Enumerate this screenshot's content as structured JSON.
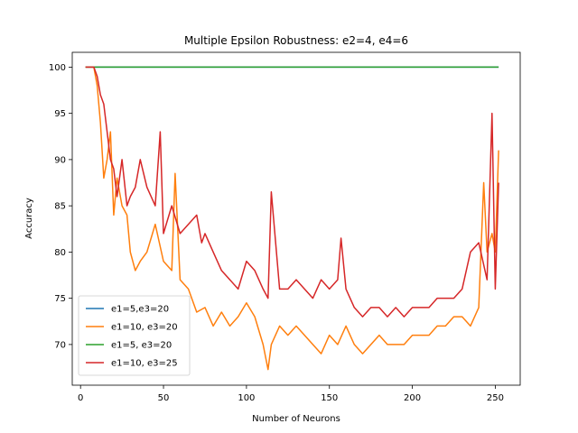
{
  "chart_data": {
    "type": "line",
    "title": "Multiple Epsilon Robustness: e2=4, e4=6",
    "xlabel": "Number of Neurons",
    "ylabel": "Accuracy",
    "xlim": [
      -5,
      265
    ],
    "ylim": [
      65.6,
      101.6
    ],
    "xticks": [
      0,
      50,
      100,
      150,
      200,
      250
    ],
    "yticks": [
      70,
      75,
      80,
      85,
      90,
      95,
      100
    ],
    "grid": false,
    "legend_position": "lower-left",
    "series": [
      {
        "name": "e1=5,e3=20",
        "color": "#1f77b4",
        "x": [
          3,
          252
        ],
        "y": [
          100,
          100
        ]
      },
      {
        "name": "e1=10, e3=20",
        "color": "#ff7f0e",
        "x": [
          3,
          5,
          8,
          10,
          12,
          14,
          16,
          18,
          20,
          22,
          25,
          28,
          30,
          33,
          36,
          40,
          45,
          50,
          55,
          57,
          60,
          65,
          70,
          75,
          80,
          85,
          90,
          95,
          100,
          105,
          110,
          113,
          115,
          120,
          125,
          130,
          135,
          140,
          145,
          150,
          155,
          160,
          165,
          170,
          175,
          180,
          185,
          190,
          195,
          200,
          205,
          210,
          215,
          220,
          225,
          230,
          235,
          240,
          243,
          245,
          248,
          250,
          252
        ],
        "y": [
          100,
          100,
          100,
          98,
          94,
          88,
          90,
          93,
          84,
          88,
          85,
          84,
          80,
          78,
          79,
          80,
          83,
          79,
          78,
          88.5,
          77,
          76,
          73.5,
          74,
          72,
          73.5,
          72,
          73,
          74.5,
          73,
          70,
          67.3,
          70,
          72,
          71,
          72,
          71,
          70,
          69,
          71,
          70,
          72,
          70,
          69,
          70,
          71,
          70,
          70,
          70,
          71,
          71,
          71,
          72,
          72,
          73,
          73,
          72,
          74,
          87.5,
          80,
          82,
          80,
          91
        ]
      },
      {
        "name": "e1=5, e3=20",
        "color": "#2ca02c",
        "x": [
          3,
          252
        ],
        "y": [
          100,
          100
        ]
      },
      {
        "name": "e1=10, e3=25",
        "color": "#d62728",
        "x": [
          3,
          5,
          8,
          10,
          12,
          14,
          16,
          18,
          20,
          22,
          25,
          28,
          30,
          33,
          36,
          40,
          45,
          48,
          50,
          55,
          60,
          65,
          70,
          73,
          75,
          80,
          85,
          90,
          95,
          100,
          105,
          110,
          113,
          115,
          120,
          125,
          130,
          135,
          140,
          145,
          150,
          155,
          157,
          160,
          165,
          170,
          175,
          180,
          185,
          190,
          195,
          200,
          205,
          210,
          215,
          220,
          225,
          230,
          235,
          240,
          245,
          248,
          250,
          252
        ],
        "y": [
          100,
          100,
          100,
          99,
          97,
          96,
          93,
          90,
          89,
          86,
          90,
          85,
          86,
          87,
          90,
          87,
          85,
          93,
          82,
          85,
          82,
          83,
          84,
          81,
          82,
          80,
          78,
          77,
          76,
          79,
          78,
          76,
          75,
          86.5,
          76,
          76,
          77,
          76,
          75,
          77,
          76,
          77,
          81.5,
          76,
          74,
          73,
          74,
          74,
          73,
          74,
          73,
          74,
          74,
          74,
          75,
          75,
          75,
          76,
          80,
          81,
          77,
          95,
          76,
          87.5
        ]
      }
    ]
  }
}
